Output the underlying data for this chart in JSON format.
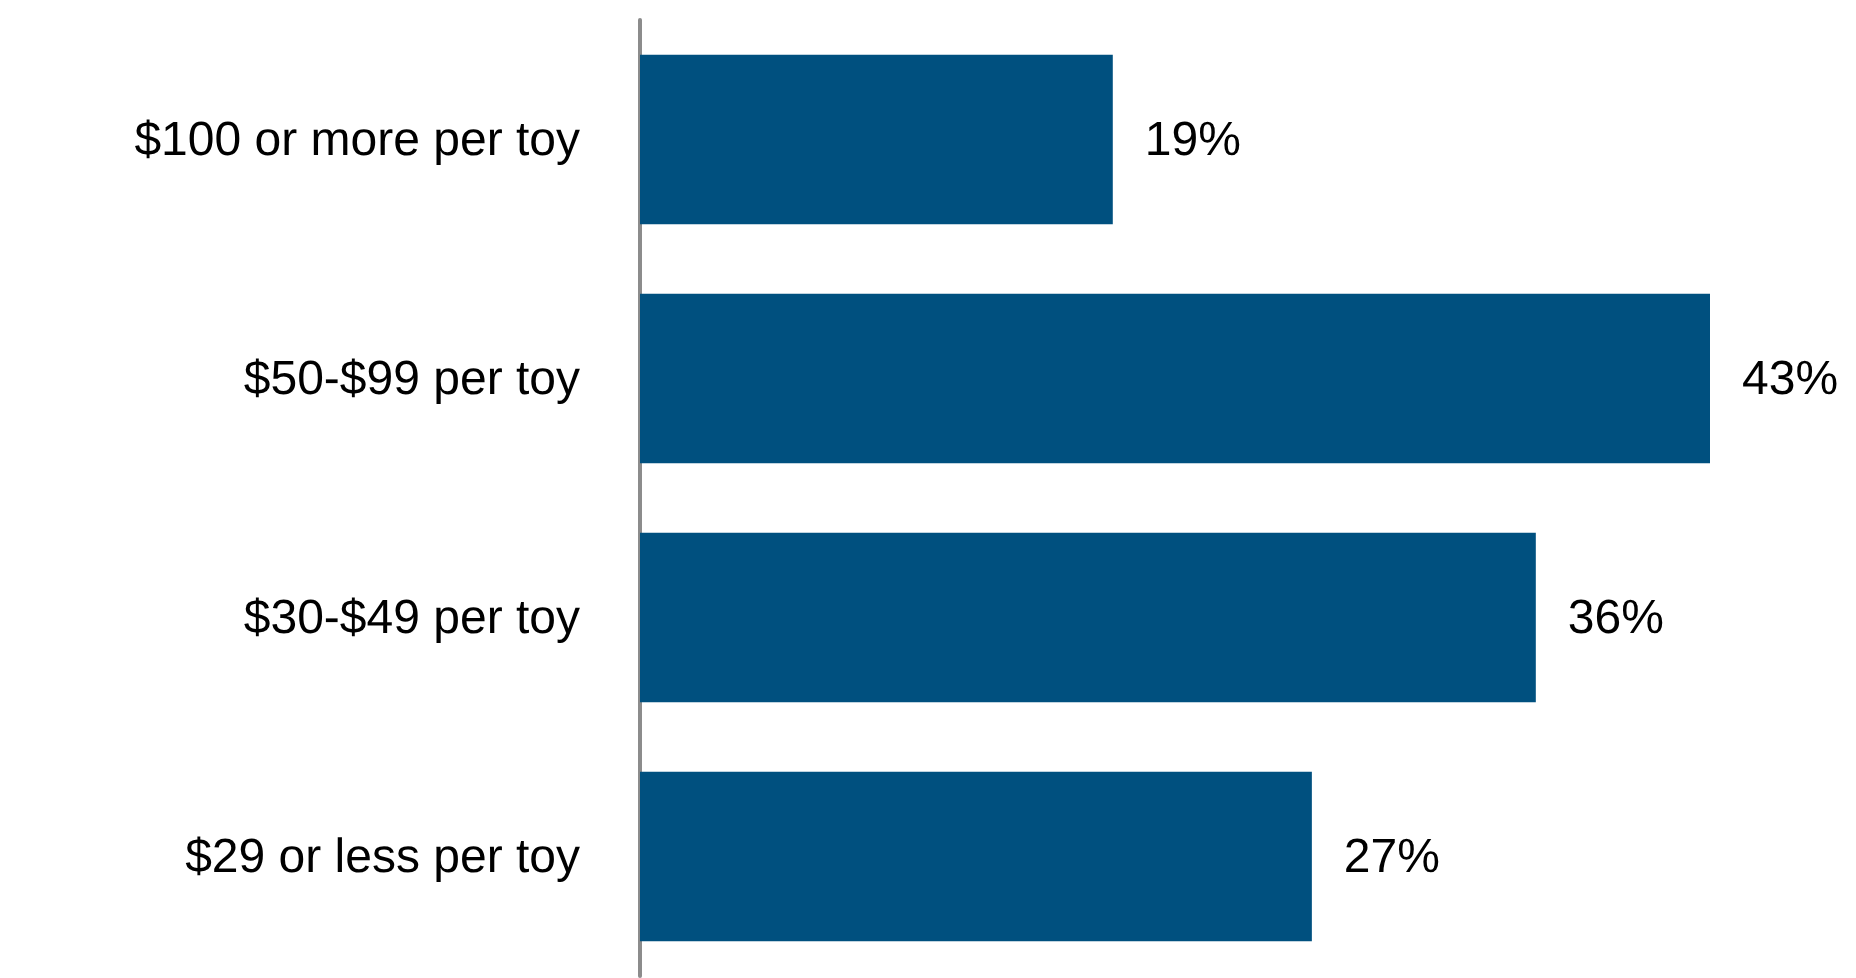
{
  "chart_data": {
    "type": "bar",
    "orientation": "horizontal",
    "categories": [
      "$100 or more per toy",
      "$50-$99 per toy",
      "$30-$49 per toy",
      "$29 or less per toy"
    ],
    "values": [
      19,
      43,
      36,
      27
    ],
    "color": "#00507f",
    "value_labels": [
      "19%",
      "43%",
      "36%",
      "27%"
    ]
  }
}
